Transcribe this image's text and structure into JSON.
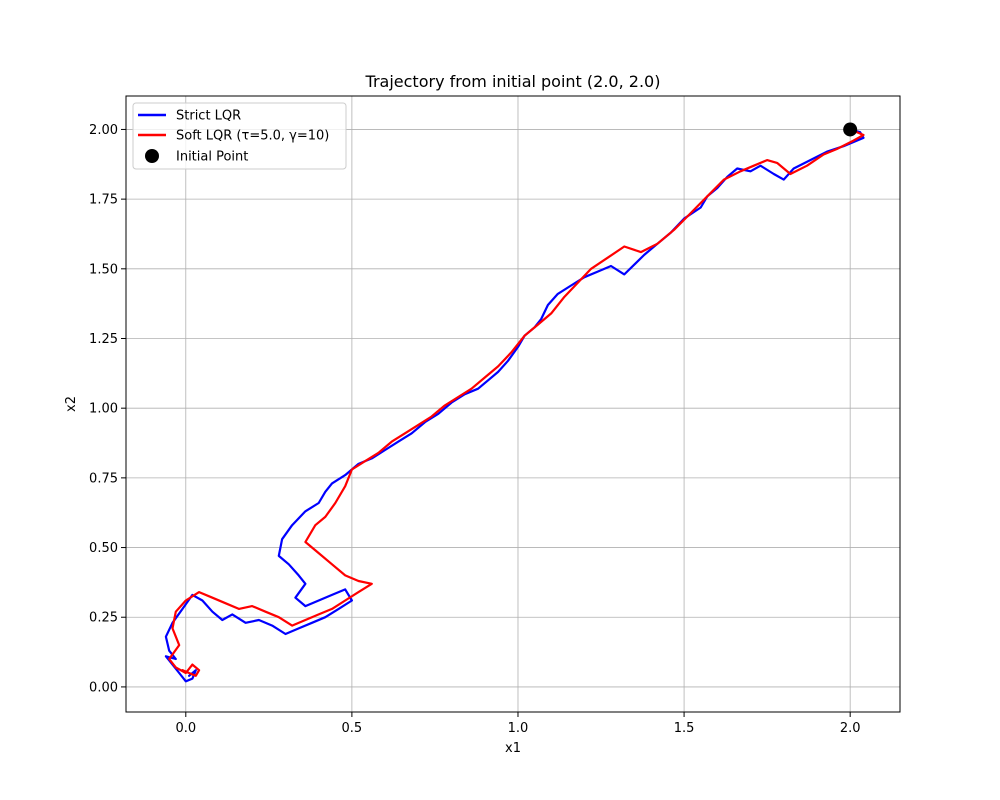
{
  "chart_data": {
    "type": "line",
    "title": "Trajectory from initial point (2.0, 2.0)",
    "xlabel": "x1",
    "ylabel": "x2",
    "xlim": [
      -0.18,
      2.15
    ],
    "ylim": [
      -0.09,
      2.12
    ],
    "x_ticks": [
      0.0,
      0.5,
      1.0,
      1.5,
      2.0
    ],
    "x_tick_labels": [
      "0.0",
      "0.5",
      "1.0",
      "1.5",
      "2.0"
    ],
    "y_ticks": [
      0.0,
      0.25,
      0.5,
      0.75,
      1.0,
      1.25,
      1.5,
      1.75,
      2.0
    ],
    "y_tick_labels": [
      "0.00",
      "0.25",
      "0.50",
      "0.75",
      "1.00",
      "1.25",
      "1.50",
      "1.75",
      "2.00"
    ],
    "grid": true,
    "legend_position": "top-left",
    "series": [
      {
        "name": "Strict LQR",
        "color": "#0000ff",
        "x": [
          2.0,
          2.03,
          2.04,
          1.98,
          1.93,
          1.88,
          1.83,
          1.8,
          1.77,
          1.73,
          1.7,
          1.66,
          1.63,
          1.6,
          1.57,
          1.55,
          1.5,
          1.46,
          1.42,
          1.38,
          1.32,
          1.28,
          1.24,
          1.2,
          1.16,
          1.12,
          1.09,
          1.07,
          1.05,
          1.02,
          1.0,
          0.97,
          0.94,
          0.91,
          0.88,
          0.84,
          0.8,
          0.76,
          0.72,
          0.68,
          0.64,
          0.6,
          0.56,
          0.52,
          0.48,
          0.44,
          0.42,
          0.4,
          0.36,
          0.32,
          0.29,
          0.28,
          0.31,
          0.34,
          0.36,
          0.33,
          0.36,
          0.4,
          0.44,
          0.48,
          0.5,
          0.46,
          0.42,
          0.38,
          0.34,
          0.3,
          0.26,
          0.22,
          0.18,
          0.14,
          0.11,
          0.08,
          0.05,
          0.02,
          -0.01,
          -0.04,
          -0.06,
          -0.05,
          -0.03,
          -0.06,
          -0.04,
          -0.02,
          0.0,
          0.02,
          0.03,
          0.01
        ],
        "y": [
          2.0,
          1.99,
          1.97,
          1.94,
          1.92,
          1.89,
          1.86,
          1.82,
          1.84,
          1.87,
          1.85,
          1.86,
          1.83,
          1.79,
          1.76,
          1.72,
          1.68,
          1.63,
          1.59,
          1.55,
          1.48,
          1.51,
          1.49,
          1.47,
          1.44,
          1.41,
          1.37,
          1.32,
          1.29,
          1.26,
          1.22,
          1.17,
          1.13,
          1.1,
          1.07,
          1.05,
          1.02,
          0.98,
          0.95,
          0.91,
          0.88,
          0.85,
          0.82,
          0.8,
          0.76,
          0.73,
          0.7,
          0.66,
          0.63,
          0.58,
          0.53,
          0.47,
          0.44,
          0.4,
          0.37,
          0.32,
          0.29,
          0.31,
          0.33,
          0.35,
          0.31,
          0.28,
          0.25,
          0.23,
          0.21,
          0.19,
          0.22,
          0.24,
          0.23,
          0.26,
          0.24,
          0.27,
          0.31,
          0.33,
          0.28,
          0.23,
          0.18,
          0.13,
          0.1,
          0.11,
          0.08,
          0.05,
          0.02,
          0.03,
          0.06,
          0.04
        ]
      },
      {
        "name": "Soft LQR (τ=5.0, γ=10)",
        "color": "#ff0000",
        "x": [
          2.0,
          2.04,
          2.01,
          1.96,
          1.92,
          1.87,
          1.82,
          1.78,
          1.75,
          1.71,
          1.67,
          1.62,
          1.57,
          1.52,
          1.47,
          1.42,
          1.37,
          1.32,
          1.27,
          1.22,
          1.18,
          1.14,
          1.1,
          1.06,
          1.02,
          0.98,
          0.94,
          0.9,
          0.86,
          0.82,
          0.78,
          0.74,
          0.7,
          0.66,
          0.62,
          0.58,
          0.54,
          0.5,
          0.48,
          0.45,
          0.42,
          0.39,
          0.36,
          0.4,
          0.44,
          0.48,
          0.52,
          0.56,
          0.52,
          0.48,
          0.44,
          0.4,
          0.36,
          0.32,
          0.28,
          0.24,
          0.2,
          0.16,
          0.12,
          0.08,
          0.04,
          0.0,
          -0.03,
          -0.04,
          -0.02,
          -0.05,
          -0.03,
          0.0,
          0.02,
          0.04,
          0.03,
          0.01,
          -0.01
        ],
        "y": [
          2.0,
          1.98,
          1.96,
          1.93,
          1.91,
          1.87,
          1.84,
          1.88,
          1.89,
          1.87,
          1.85,
          1.82,
          1.76,
          1.7,
          1.64,
          1.59,
          1.56,
          1.58,
          1.54,
          1.5,
          1.45,
          1.4,
          1.34,
          1.3,
          1.26,
          1.2,
          1.15,
          1.11,
          1.07,
          1.04,
          1.01,
          0.97,
          0.94,
          0.91,
          0.88,
          0.84,
          0.81,
          0.78,
          0.72,
          0.66,
          0.61,
          0.58,
          0.52,
          0.48,
          0.44,
          0.4,
          0.38,
          0.37,
          0.34,
          0.31,
          0.28,
          0.26,
          0.24,
          0.22,
          0.25,
          0.27,
          0.29,
          0.28,
          0.3,
          0.32,
          0.34,
          0.31,
          0.27,
          0.21,
          0.15,
          0.1,
          0.07,
          0.05,
          0.08,
          0.06,
          0.04,
          0.05,
          0.06
        ]
      }
    ],
    "initial_point": {
      "label": "Initial Point",
      "x": 2.0,
      "y": 2.0,
      "color": "#000000"
    }
  }
}
